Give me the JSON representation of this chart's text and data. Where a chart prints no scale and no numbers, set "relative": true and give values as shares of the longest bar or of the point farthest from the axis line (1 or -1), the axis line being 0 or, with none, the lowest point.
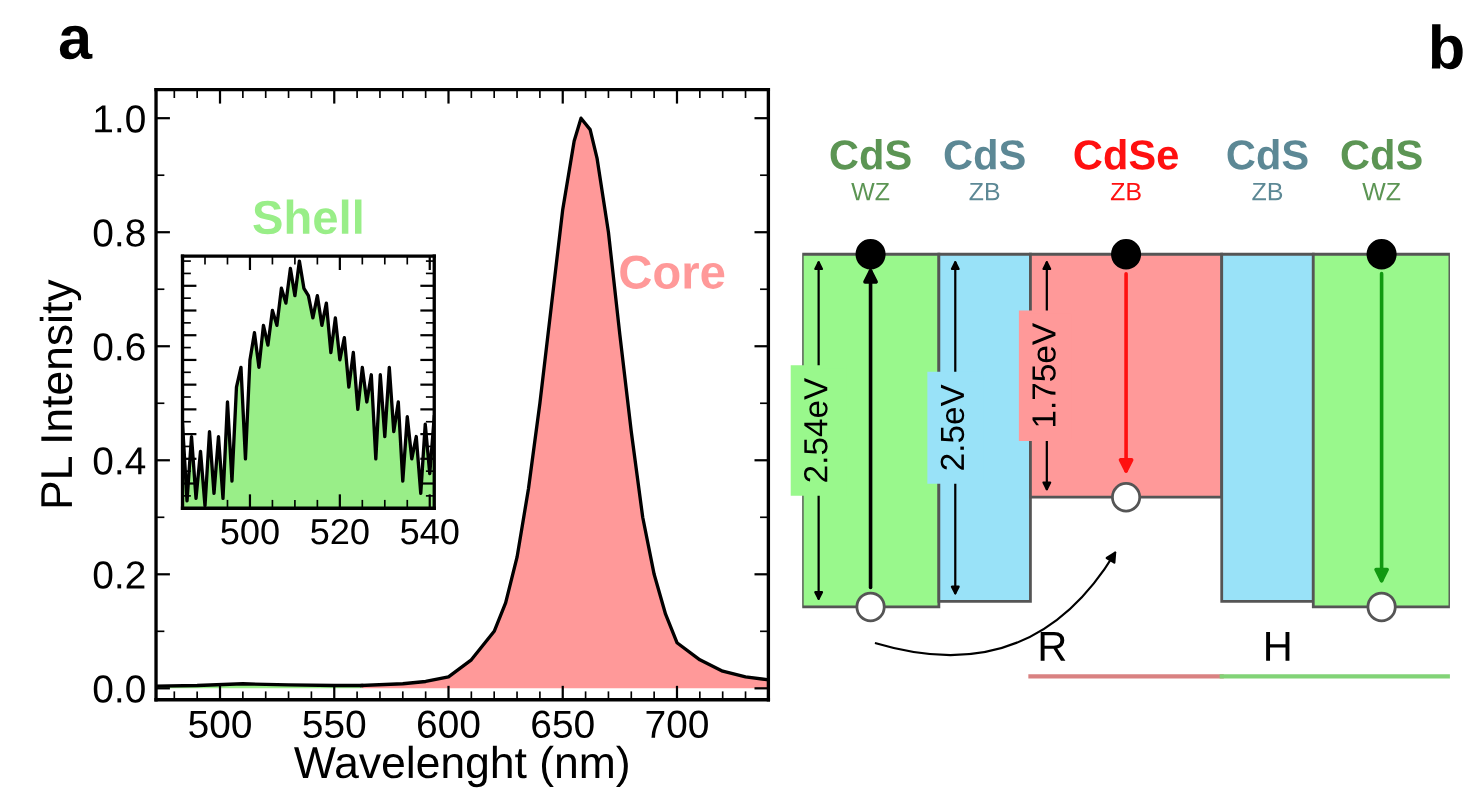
{
  "chart_data": [
    {
      "type": "area",
      "title": "a",
      "xlabel": "Wavelenght (nm)",
      "ylabel": "PL Intensity",
      "xlim": [
        472,
        740
      ],
      "ylim": [
        -0.02,
        1.05
      ],
      "xticks": [
        500,
        550,
        600,
        650,
        700
      ],
      "yticks": [
        {
          "value": 0,
          "label": "0.0"
        },
        {
          "value": 0.2,
          "label": "0.2"
        },
        {
          "value": 0.4,
          "label": "0.4"
        },
        {
          "value": 0.6,
          "label": "0.6"
        },
        {
          "value": 0.8,
          "label": "0.8"
        },
        {
          "value": 1.0,
          "label": "1.0"
        }
      ],
      "legend": "right",
      "series": [
        {
          "name": "Shell",
          "color": "#99ee88",
          "x": [
            472,
            490,
            510,
            530,
            550,
            562
          ],
          "values": [
            0.004,
            0.005,
            0.008,
            0.006,
            0.005,
            0.005
          ]
        },
        {
          "name": "Core",
          "color": "#ff9999",
          "x": [
            562,
            580,
            590,
            600,
            610,
            620,
            625,
            630,
            635,
            640,
            645,
            650,
            655,
            658,
            662,
            665,
            670,
            675,
            680,
            685,
            690,
            695,
            700,
            710,
            720,
            730,
            740
          ],
          "values": [
            0.005,
            0.008,
            0.012,
            0.02,
            0.05,
            0.1,
            0.15,
            0.23,
            0.35,
            0.5,
            0.67,
            0.84,
            0.96,
            1.0,
            0.98,
            0.93,
            0.8,
            0.62,
            0.45,
            0.3,
            0.2,
            0.13,
            0.08,
            0.05,
            0.03,
            0.02,
            0.015
          ]
        }
      ]
    },
    {
      "type": "area",
      "relative": true,
      "xlim": [
        485,
        541
      ],
      "xticks": [
        500,
        520,
        540
      ],
      "tick_labels": "x",
      "series": [
        {
          "color": "#99ee88",
          "x": [
            485,
            486,
            487,
            488,
            489,
            490,
            491,
            492,
            493,
            494,
            495,
            496,
            497,
            498,
            499,
            500,
            501,
            502,
            503,
            504,
            505,
            506,
            507,
            508,
            509,
            510,
            511,
            512,
            513,
            514,
            515,
            516,
            517,
            518,
            519,
            520,
            521,
            522,
            523,
            524,
            525,
            526,
            527,
            528,
            529,
            530,
            531,
            532,
            533,
            534,
            535,
            536,
            537,
            538,
            539,
            540,
            541
          ],
          "values": [
            0.34,
            0.03,
            0.29,
            0.04,
            0.23,
            0.01,
            0.31,
            0.06,
            0.29,
            0.04,
            0.43,
            0.11,
            0.49,
            0.57,
            0.2,
            0.6,
            0.71,
            0.57,
            0.74,
            0.66,
            0.8,
            0.74,
            0.89,
            0.83,
            0.97,
            0.86,
            1.0,
            0.89,
            0.86,
            0.77,
            0.86,
            0.74,
            0.83,
            0.63,
            0.77,
            0.6,
            0.69,
            0.49,
            0.63,
            0.4,
            0.57,
            0.43,
            0.54,
            0.2,
            0.54,
            0.29,
            0.57,
            0.31,
            0.43,
            0.11,
            0.37,
            0.2,
            0.29,
            0.06,
            0.34,
            0.14,
            0.37
          ]
        }
      ]
    },
    {
      "type": "other",
      "title": "b",
      "categories": [
        "CdS",
        "CdS",
        "CdSe",
        "CdS",
        "CdS"
      ],
      "colors": [
        "#99f88c",
        "#99e2f8",
        "#ff9999",
        "#99e2f8",
        "#99f88c"
      ],
      "values": [
        2.54,
        2.5,
        1.75,
        null,
        null
      ],
      "value_labels": [
        "2.54eV",
        "2.5eV",
        "1.75eV",
        null,
        null
      ],
      "annotations": [
        "WZ",
        "ZB",
        "ZB",
        "ZB",
        "WZ",
        "R",
        "H"
      ]
    }
  ]
}
